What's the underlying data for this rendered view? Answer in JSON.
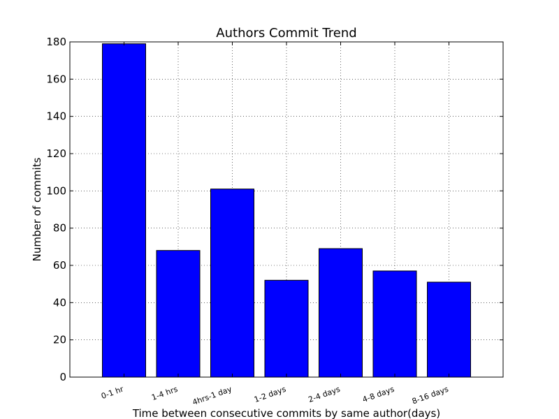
{
  "chart_data": {
    "type": "bar",
    "title": "Authors Commit Trend",
    "xlabel": "Time between consecutive commits by same author(days)",
    "ylabel": "Number of commits",
    "categories": [
      "0-1 hr",
      "1-4 hrs",
      "4hrs-1 day",
      "1-2 days",
      "2-4 days",
      "4-8 days",
      "8-16 days"
    ],
    "values": [
      179,
      68,
      101,
      52,
      69,
      57,
      51
    ],
    "ylim": [
      0,
      180
    ],
    "yticks": [
      0,
      20,
      40,
      60,
      80,
      100,
      120,
      140,
      160,
      180
    ],
    "grid": true,
    "bar_color": "#0000ff",
    "bar_edge_color": "#000000"
  }
}
